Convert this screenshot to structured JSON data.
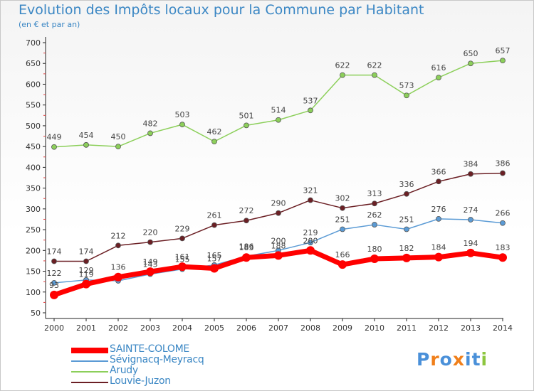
{
  "title": "Evolution des Impôts locaux pour la Commune par Habitant",
  "subtitle": "(en € et par an)",
  "logo": {
    "text": "Proxiti",
    "letters": [
      {
        "ch": "P",
        "color": "#4a90d9"
      },
      {
        "ch": "r",
        "color": "#f07f1a"
      },
      {
        "ch": "o",
        "color": "#4a90d9"
      },
      {
        "ch": "x",
        "color": "#f07f1a"
      },
      {
        "ch": "i",
        "color": "#4a90d9"
      },
      {
        "ch": "t",
        "color": "#4a90d9"
      },
      {
        "ch": "i",
        "color": "#8dc63f"
      }
    ]
  },
  "chart_data": {
    "type": "line",
    "x": [
      2000,
      2001,
      2002,
      2003,
      2004,
      2005,
      2006,
      2007,
      2008,
      2009,
      2010,
      2011,
      2012,
      2013,
      2014
    ],
    "ylim": [
      50,
      700
    ],
    "yticks": [
      50,
      100,
      150,
      200,
      250,
      300,
      350,
      400,
      450,
      500,
      550,
      600,
      650,
      700
    ],
    "grid": false,
    "legend_position": "bottom",
    "series": [
      {
        "name": "Louvie-Juzon",
        "color": "#6b1f24",
        "values": [
          174,
          174,
          212,
          220,
          229,
          261,
          272,
          290,
          321,
          302,
          313,
          336,
          366,
          384,
          386
        ],
        "labels": [
          "174",
          "174",
          "212",
          "220",
          "229",
          "261",
          "272",
          "290",
          "321",
          "302",
          "313",
          "336",
          "366",
          "384",
          "386"
        ]
      },
      {
        "name": "Arudy",
        "color": "#8ccf5a",
        "values": [
          449,
          454,
          450,
          482,
          503,
          462,
          501,
          514,
          537,
          622,
          622,
          573,
          616,
          650,
          657
        ],
        "labels": [
          "449",
          "454",
          "450",
          "482",
          "503",
          "462",
          "501",
          "514",
          "537",
          "622",
          "622",
          "573",
          "616",
          "650",
          "657"
        ]
      },
      {
        "name": "Sévignacq-Meyracq",
        "color": "#5b9bd5",
        "values": [
          122,
          129,
          127,
          143,
          155,
          165,
          186,
          200,
          219,
          251,
          262,
          251,
          276,
          274,
          266
        ],
        "labels": [
          "122",
          "129",
          "",
          "143",
          "155",
          "165",
          "186",
          "200",
          "219",
          "251",
          "262",
          "251",
          "276",
          "274",
          "266"
        ]
      },
      {
        "name": "SAINTE-COLOME",
        "color": "#ff0000",
        "values": [
          93,
          119,
          136,
          149,
          161,
          157,
          183,
          188,
          200,
          166,
          180,
          182,
          184,
          194,
          183
        ],
        "labels": [
          "93",
          "119",
          "136",
          "149",
          "161",
          "157",
          "183",
          "188",
          "200",
          "166",
          "180",
          "182",
          "184",
          "194",
          "183"
        ]
      }
    ],
    "legend": [
      {
        "name": "SAINTE-COLOME",
        "color": "#ff0000",
        "weight": 8
      },
      {
        "name": "Sévignacq-Meyracq",
        "color": "#5b9bd5",
        "weight": 1.5
      },
      {
        "name": "Arudy",
        "color": "#8ccf5a",
        "weight": 1.5
      },
      {
        "name": "Louvie-Juzon",
        "color": "#6b1f24",
        "weight": 1.5
      }
    ]
  }
}
